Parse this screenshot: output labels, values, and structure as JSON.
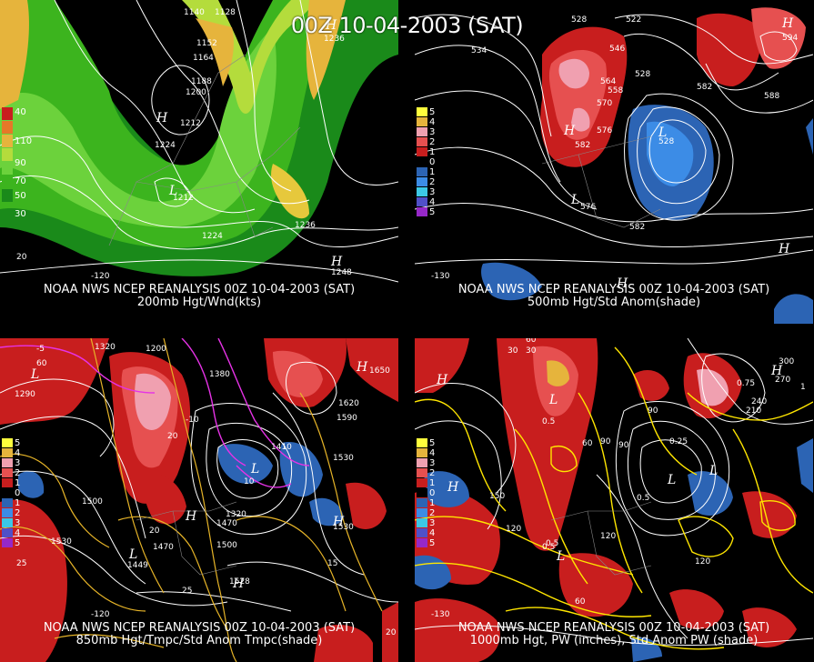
{
  "main_title": "00Z 10-04-2003 (SAT)",
  "panels": [
    {
      "caption_line1": "NOAA NWS NCEP REANALYSIS 00Z 10-04-2003 (SAT)",
      "caption_line2": "200mb Hgt/Wnd(kts)",
      "legend": [
        "40",
        "110",
        "90",
        "70",
        "50",
        "30"
      ],
      "contour_labels": [
        "1140",
        "1128",
        "1152",
        "1164",
        "1188",
        "1200",
        "1212",
        "1224",
        "1212",
        "1224",
        "1236",
        "1236",
        "1248"
      ],
      "lon_labels": [
        "-120",
        "20"
      ],
      "high_low": [
        "H",
        "L",
        "H",
        "H"
      ]
    },
    {
      "caption_line1": "NOAA NWS NCEP REANALYSIS 00Z 10-04-2003 (SAT)",
      "caption_line2": "500mb Hgt/Std Anom(shade)",
      "legend": [
        "5",
        "4",
        "3",
        "2",
        "1",
        "0",
        "1",
        "2",
        "3",
        "4",
        "5"
      ],
      "contour_labels": [
        "528",
        "534",
        "522",
        "546",
        "528",
        "558",
        "564",
        "570",
        "576",
        "582",
        "528",
        "594",
        "588",
        "576",
        "582",
        "582"
      ],
      "lon_labels": [
        "-130"
      ],
      "high_low": [
        "H",
        "L",
        "L",
        "H",
        "H",
        "H"
      ]
    },
    {
      "caption_line1": "NOAA NWS NCEP REANALYSIS 00Z 10-04-2003 (SAT)",
      "caption_line2": "850mb Hgt/Tmpc/Std Anom Tmpc(shade)",
      "legend": [
        "5",
        "4",
        "3",
        "2",
        "1",
        "0",
        "1",
        "2",
        "3",
        "4",
        "5"
      ],
      "contour_labels": [
        "1320",
        "1200",
        "1290",
        "1380",
        "1650",
        "1620",
        "1590",
        "1410",
        "1530",
        "1500",
        "1470",
        "1530",
        "1500",
        "1320",
        "1470",
        "1530",
        "1449",
        "1528",
        "20",
        "25",
        "20",
        "25",
        "-10",
        "-5",
        "10",
        "15",
        "60",
        "20"
      ],
      "lon_labels": [
        "-120"
      ],
      "high_low": [
        "L",
        "H",
        "L",
        "H",
        "L",
        "H",
        "H"
      ]
    },
    {
      "caption_line1": "NOAA NWS NCEP REANALYSIS 00Z 10-04-2003 (SAT)",
      "caption_line2": "1000mb Hgt, PW (inches), Std Anom PW (shade)",
      "legend": [
        "5",
        "4",
        "3",
        "2",
        "1",
        "0",
        "1",
        "2",
        "3",
        "4",
        "5"
      ],
      "contour_labels": [
        "60",
        "30",
        "300",
        "270",
        "240",
        "210",
        "150",
        "120",
        "90",
        "60",
        "120",
        "90",
        "0.5",
        "0.25",
        "0.75",
        "0.5",
        "0.5",
        "1",
        "120",
        "90",
        "60",
        "30",
        "0.5"
      ],
      "lon_labels": [
        "-130"
      ],
      "high_low": [
        "H",
        "H",
        "L",
        "H",
        "L",
        "L",
        "L"
      ]
    }
  ]
}
